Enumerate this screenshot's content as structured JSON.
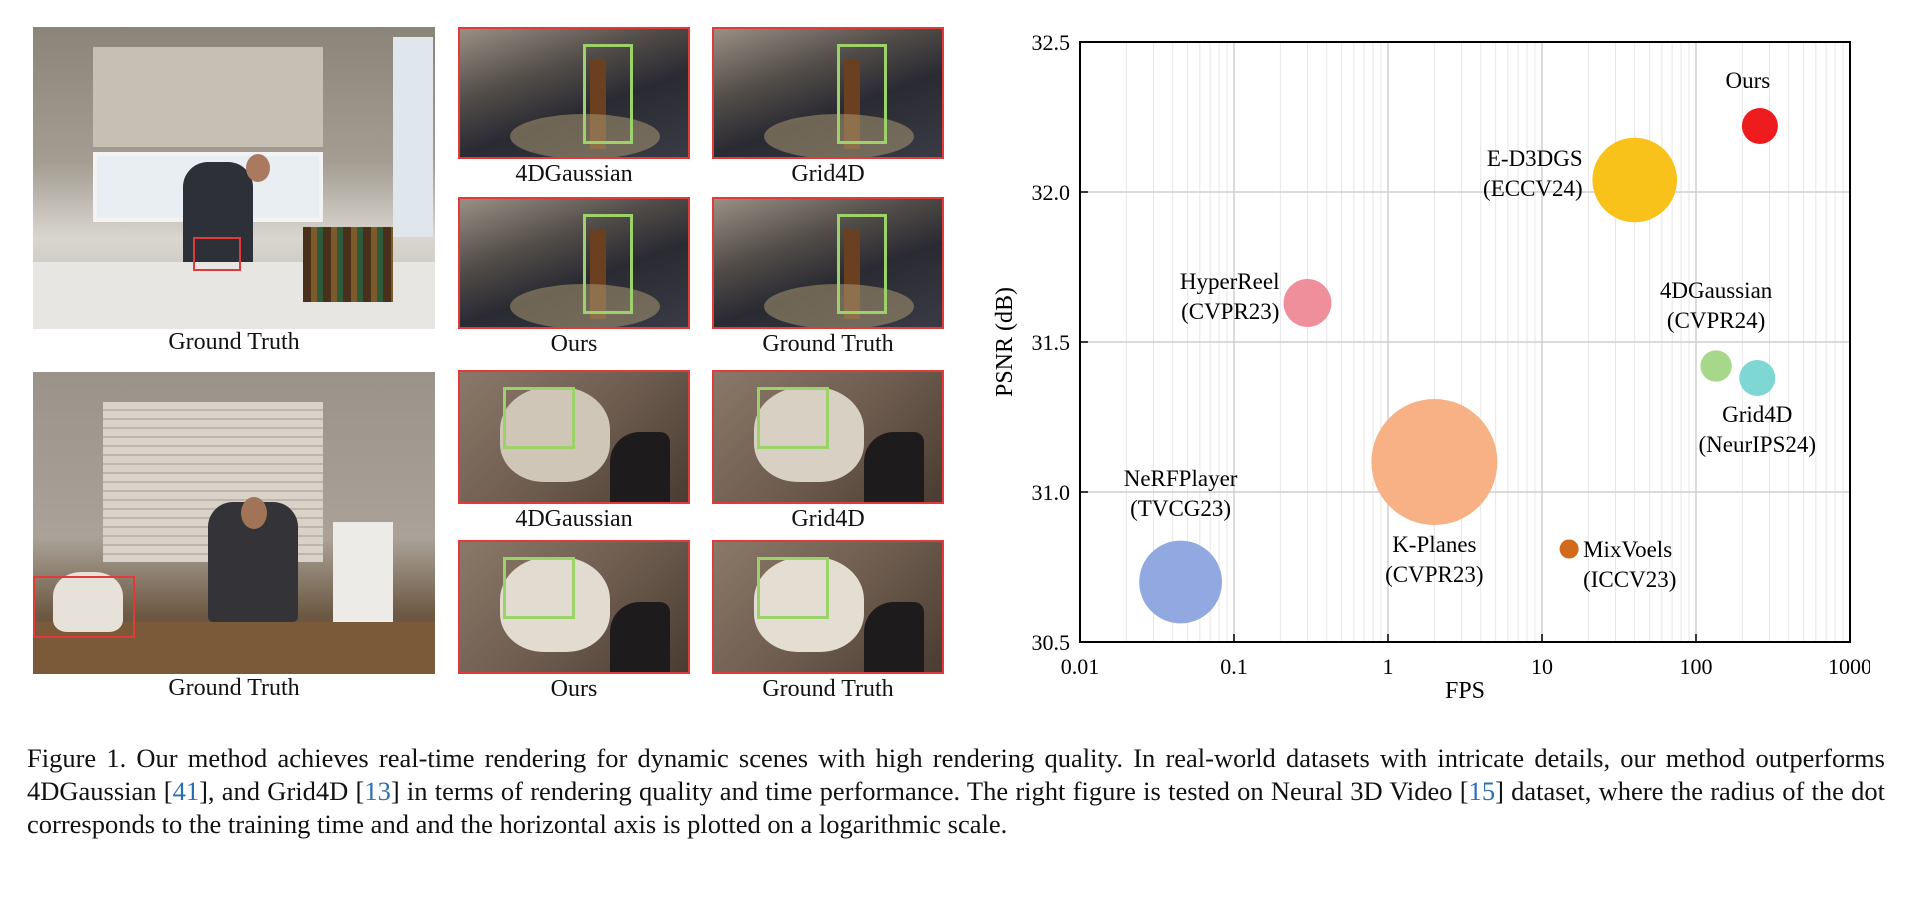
{
  "figure": {
    "scene1": {
      "gt_label": "Ground Truth",
      "crops": [
        "4DGaussian",
        "Grid4D",
        "Ours",
        "Ground Truth"
      ]
    },
    "scene2": {
      "gt_label": "Ground Truth",
      "crops": [
        "4DGaussian",
        "Grid4D",
        "Ours",
        "Ground Truth"
      ]
    }
  },
  "chart_data": {
    "type": "scatter",
    "xlabel": "FPS",
    "ylabel": "PSNR (dB)",
    "xscale": "log",
    "xlim": [
      0.01,
      1000
    ],
    "ylim": [
      30.5,
      32.5
    ],
    "xticks": [
      "0.01",
      "0.1",
      "1",
      "10",
      "100",
      "1000"
    ],
    "yticks": [
      "30.5",
      "31.0",
      "31.5",
      "32.0",
      "32.5"
    ],
    "grid": true,
    "points": [
      {
        "name": "Ours",
        "venue": "",
        "fps": 260,
        "psnr": 32.22,
        "size": 1.0,
        "color": "#ee1c1c"
      },
      {
        "name": "E-D3DGS",
        "venue": "(ECCV24)",
        "fps": 40,
        "psnr": 32.04,
        "size": 2.35,
        "color": "#f9c21a"
      },
      {
        "name": "HyperReel",
        "venue": "(CVPR23)",
        "fps": 0.3,
        "psnr": 31.63,
        "size": 1.33,
        "color": "#ef8f9c"
      },
      {
        "name": "4DGaussian",
        "venue": "(CVPR24)",
        "fps": 135,
        "psnr": 31.42,
        "size": 0.87,
        "color": "#a6d88a"
      },
      {
        "name": "Grid4D",
        "venue": "(NeurIPS24)",
        "fps": 250,
        "psnr": 31.38,
        "size": 1.0,
        "color": "#7fd7d4"
      },
      {
        "name": "K-Planes",
        "venue": "(CVPR23)",
        "fps": 2,
        "psnr": 31.1,
        "size": 3.5,
        "color": "#f7b184"
      },
      {
        "name": "MixVoels",
        "venue": "(ICCV23)",
        "fps": 15,
        "psnr": 30.81,
        "size": 0.53,
        "color": "#d26a1c"
      },
      {
        "name": "NeRFPlayer",
        "venue": "(TVCG23)",
        "fps": 0.045,
        "psnr": 30.7,
        "size": 2.3,
        "color": "#91a8e0"
      }
    ]
  },
  "caption": {
    "part1": "Figure 1.  Our method achieves real-time rendering for dynamic scenes with high rendering quality.  In real-world datasets with intricate details, our method outperforms 4DGaussian [",
    "ref1": "41",
    "part2": "], and Grid4D [",
    "ref2": "13",
    "part3": "] in terms of rendering quality and time performance. The right figure is tested on Neural 3D Video [",
    "ref3": "15",
    "part4": "] dataset, where the radius of the dot corresponds to the training time and and the horizontal axis is plotted on a logarithmic scale."
  }
}
